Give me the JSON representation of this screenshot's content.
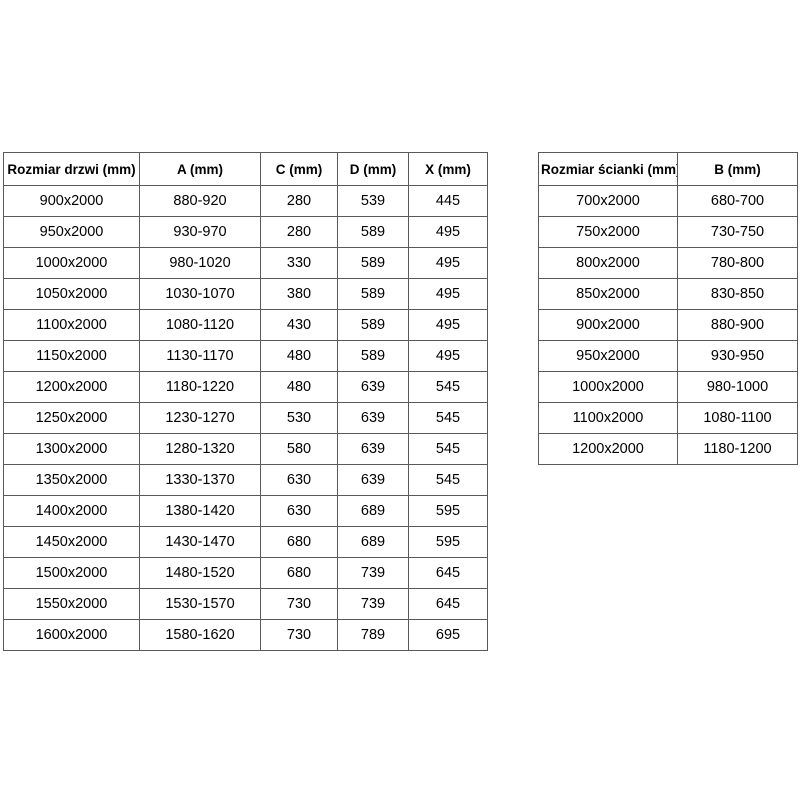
{
  "colors": {
    "background": "#ffffff",
    "table_border": "#595959",
    "text": "#000000"
  },
  "tables": {
    "doors": {
      "title_semantic": "door-sizes-table",
      "headers": [
        "Rozmiar drzwi (mm)",
        "A (mm)",
        "C (mm)",
        "D (mm)",
        "X (mm)"
      ],
      "rows": [
        [
          "900x2000",
          "880-920",
          "280",
          "539",
          "445"
        ],
        [
          "950x2000",
          "930-970",
          "280",
          "589",
          "495"
        ],
        [
          "1000x2000",
          "980-1020",
          "330",
          "589",
          "495"
        ],
        [
          "1050x2000",
          "1030-1070",
          "380",
          "589",
          "495"
        ],
        [
          "1100x2000",
          "1080-1120",
          "430",
          "589",
          "495"
        ],
        [
          "1150x2000",
          "1130-1170",
          "480",
          "589",
          "495"
        ],
        [
          "1200x2000",
          "1180-1220",
          "480",
          "639",
          "545"
        ],
        [
          "1250x2000",
          "1230-1270",
          "530",
          "639",
          "545"
        ],
        [
          "1300x2000",
          "1280-1320",
          "580",
          "639",
          "545"
        ],
        [
          "1350x2000",
          "1330-1370",
          "630",
          "639",
          "545"
        ],
        [
          "1400x2000",
          "1380-1420",
          "630",
          "689",
          "595"
        ],
        [
          "1450x2000",
          "1430-1470",
          "680",
          "689",
          "595"
        ],
        [
          "1500x2000",
          "1480-1520",
          "680",
          "739",
          "645"
        ],
        [
          "1550x2000",
          "1530-1570",
          "730",
          "739",
          "645"
        ],
        [
          "1600x2000",
          "1580-1620",
          "730",
          "789",
          "695"
        ]
      ]
    },
    "walls": {
      "title_semantic": "wall-panel-sizes-table",
      "headers": [
        "Rozmiar ścianki (mm)",
        "B (mm)"
      ],
      "rows": [
        [
          "700x2000",
          "680-700"
        ],
        [
          "750x2000",
          "730-750"
        ],
        [
          "800x2000",
          "780-800"
        ],
        [
          "850x2000",
          "830-850"
        ],
        [
          "900x2000",
          "880-900"
        ],
        [
          "950x2000",
          "930-950"
        ],
        [
          "1000x2000",
          "980-1000"
        ],
        [
          "1100x2000",
          "1080-1100"
        ],
        [
          "1200x2000",
          "1180-1200"
        ]
      ]
    }
  }
}
